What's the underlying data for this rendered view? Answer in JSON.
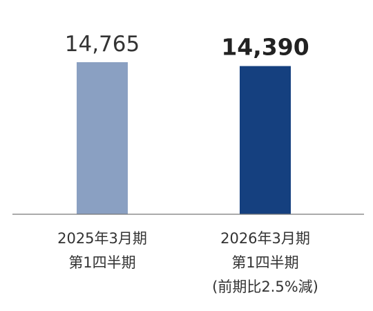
{
  "chart_data": {
    "type": "bar",
    "title": "",
    "xlabel": "",
    "ylabel": "",
    "categories": [
      [
        "2025年3月期",
        "第1四半期"
      ],
      [
        "2026年3月期",
        "第1四半期",
        "(前期比2.5%減)"
      ]
    ],
    "values": [
      14765,
      14390
    ],
    "data_labels": [
      "14,765",
      "14,390"
    ],
    "colors": [
      "#8aa0c2",
      "#15407f"
    ],
    "highlighted_index": 1,
    "ylim": [
      0,
      18000
    ],
    "grid": false,
    "legend": "none"
  }
}
